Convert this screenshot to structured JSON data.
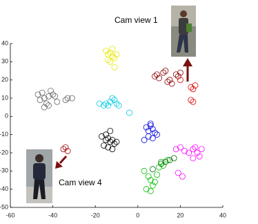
{
  "chart_data": {
    "type": "scatter",
    "xlim": [
      -60,
      40
    ],
    "ylim": [
      -50,
      40
    ],
    "xticks": [
      -60,
      -40,
      -20,
      0,
      20,
      40
    ],
    "yticks": [
      -50,
      -40,
      -30,
      -20,
      -10,
      0,
      10,
      20,
      30,
      40
    ],
    "annotations": [
      "Cam view 1",
      "Cam view 4"
    ],
    "series": [
      {
        "color": "#666666",
        "x": [
          -47,
          -45,
          -44,
          -42,
          -41,
          -40,
          -43,
          -46,
          -39,
          -38,
          -34,
          -33,
          -31,
          -44,
          -42
        ],
        "y": [
          12,
          13,
          10,
          11,
          14,
          12,
          7,
          9,
          11,
          8,
          9,
          10,
          10,
          5,
          6
        ]
      },
      {
        "color": "#e8e800",
        "x": [
          -15,
          -14,
          -13,
          -12,
          -11,
          -13,
          -14,
          -12,
          -10,
          -11
        ],
        "y": [
          36,
          34,
          35,
          33,
          32,
          30,
          31,
          37,
          34,
          27
        ]
      },
      {
        "color": "#00c8e0",
        "x": [
          -18,
          -16,
          -15,
          -13,
          -11,
          -10,
          -9,
          -12,
          -14,
          -4
        ],
        "y": [
          7,
          6,
          7,
          8,
          9,
          7,
          6,
          10,
          6,
          2
        ]
      },
      {
        "color": "#000000",
        "x": [
          -17,
          -15,
          -14,
          -13,
          -12,
          -11,
          -16,
          -14,
          -12,
          -10,
          -15,
          -13
        ],
        "y": [
          -11,
          -10,
          -12,
          -14,
          -13,
          -15,
          -16,
          -17,
          -18,
          -14,
          -13,
          -8
        ]
      },
      {
        "color": "#0000e0",
        "x": [
          4,
          5,
          6,
          7,
          8,
          9,
          5,
          7,
          3,
          6
        ],
        "y": [
          -6,
          -8,
          -5,
          -7,
          -9,
          -10,
          -11,
          -12,
          -13,
          -4
        ]
      },
      {
        "color": "#8b0000",
        "x": [
          8,
          9,
          10,
          12,
          13,
          15,
          18,
          19,
          20,
          16,
          14
        ],
        "y": [
          22,
          23,
          21,
          24,
          25,
          20,
          23,
          22,
          24,
          18,
          19
        ]
      },
      {
        "color": "#e00000",
        "x": [
          25,
          26,
          27,
          25,
          26,
          20
        ],
        "y": [
          16,
          15,
          17,
          9,
          8,
          20
        ]
      },
      {
        "color": "#ff00ff",
        "x": [
          18,
          20,
          22,
          24,
          26,
          27,
          28,
          29,
          30,
          26,
          19,
          21
        ],
        "y": [
          -18,
          -17,
          -19,
          -20,
          -18,
          -17,
          -20,
          -22,
          -18,
          -23,
          -31,
          -33
        ]
      },
      {
        "color": "#00c000",
        "x": [
          3,
          5,
          6,
          7,
          8,
          4,
          6,
          9,
          10,
          11,
          12,
          14
        ],
        "y": [
          -30,
          -33,
          -35,
          -38,
          -36,
          -40,
          -41,
          -32,
          -28,
          -25,
          -27,
          -24
        ]
      },
      {
        "color": "#006400",
        "x": [
          11,
          13,
          15,
          17,
          7
        ],
        "y": [
          -26,
          -25,
          -24,
          -23,
          -29
        ]
      },
      {
        "color": "#a00000",
        "x": [
          -35,
          -34,
          -33
        ],
        "y": [
          -18,
          -17,
          -19
        ]
      }
    ]
  }
}
